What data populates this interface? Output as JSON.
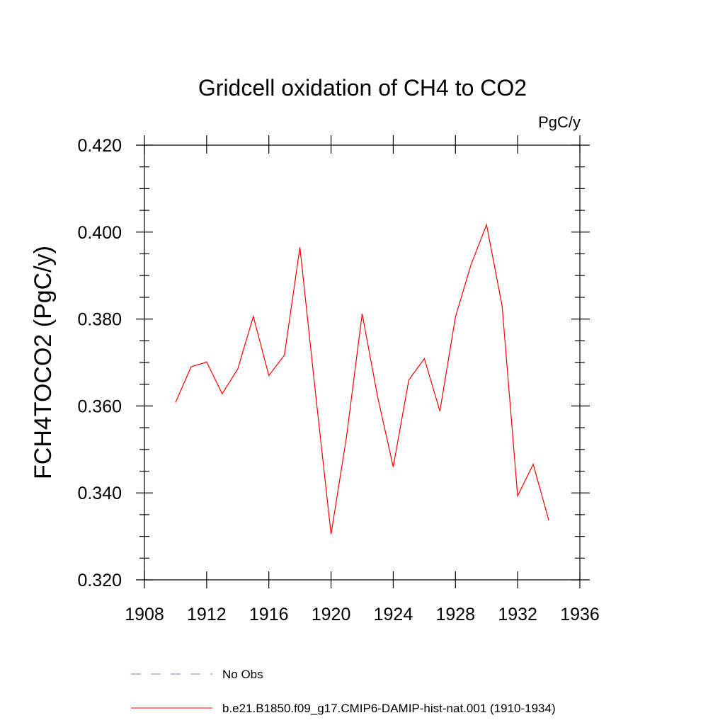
{
  "chart_data": {
    "type": "line",
    "title": "Gridcell oxidation of CH4 to CO2",
    "units_label": "PgC/y",
    "xlabel": "",
    "ylabel": "FCH4TOCO2  (PgC/y)",
    "xlim": [
      1908,
      1936
    ],
    "ylim": [
      0.32,
      0.42
    ],
    "x_ticks": [
      1908,
      1912,
      1916,
      1920,
      1924,
      1928,
      1932,
      1936
    ],
    "x_tick_labels": [
      "1908",
      "1912",
      "1916",
      "1920",
      "1924",
      "1928",
      "1932",
      "1936"
    ],
    "y_ticks": [
      0.32,
      0.34,
      0.36,
      0.38,
      0.4,
      0.42
    ],
    "y_tick_labels": [
      "0.320",
      "0.340",
      "0.360",
      "0.380",
      "0.400",
      "0.420"
    ],
    "grid": false,
    "legend_position": "bottom",
    "series": [
      {
        "name": "No Obs",
        "color": "#8a80c8",
        "dash": "dashed",
        "x": [],
        "y": []
      },
      {
        "name": "b.e21.B1850.f09_g17.CMIP6-DAMIP-hist-nat.001 (1910-1934)",
        "color": "#ff0000",
        "dash": "solid",
        "x": [
          1910,
          1911,
          1912,
          1913,
          1914,
          1915,
          1916,
          1917,
          1918,
          1919,
          1920,
          1921,
          1922,
          1923,
          1924,
          1925,
          1926,
          1927,
          1928,
          1929,
          1930,
          1931,
          1932,
          1933,
          1934
        ],
        "y": [
          0.3608,
          0.369,
          0.3701,
          0.3628,
          0.3685,
          0.3806,
          0.367,
          0.3717,
          0.3965,
          0.363,
          0.3305,
          0.353,
          0.3812,
          0.362,
          0.346,
          0.366,
          0.3709,
          0.3588,
          0.3805,
          0.3925,
          0.4017,
          0.383,
          0.3393,
          0.3466,
          0.3337
        ]
      }
    ]
  }
}
